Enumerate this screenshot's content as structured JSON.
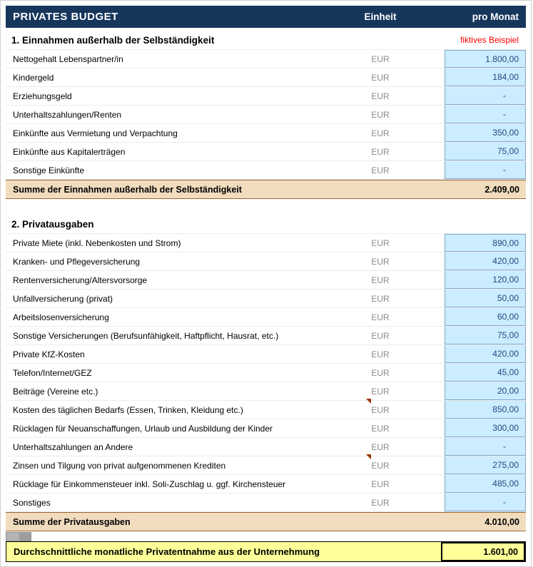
{
  "header": {
    "title": "PRIVATES BUDGET",
    "col_unit": "Einheit",
    "col_value": "pro Monat"
  },
  "note": "fiktives Beispiel",
  "unit": "EUR",
  "sections": [
    {
      "title": "1. Einnahmen außerhalb der Selbständigkeit",
      "rows": [
        {
          "label": "Nettogehalt Lebenspartner/in",
          "value": "1.800,00"
        },
        {
          "label": "Kindergeld",
          "value": "184,00"
        },
        {
          "label": "Erziehungsgeld",
          "value": "-"
        },
        {
          "label": "Unterhaltszahlungen/Renten",
          "value": "-"
        },
        {
          "label": "Einkünfte aus Vermietung und Verpachtung",
          "value": "350,00"
        },
        {
          "label": "Einkünfte aus Kapitalerträgen",
          "value": "75,00"
        },
        {
          "label": "Sonstige Einkünfte",
          "value": "-"
        }
      ],
      "summary": {
        "label": "Summe der Einnahmen außerhalb der Selbständigkeit",
        "value": "2.409,00"
      }
    },
    {
      "title": "2. Privatausgaben",
      "rows": [
        {
          "label": "Private Miete (inkl. Nebenkosten und Strom)",
          "value": "890,00"
        },
        {
          "label": "Kranken- und Pflegeversicherung",
          "value": "420,00"
        },
        {
          "label": "Rentenversicherung/Altersvorsorge",
          "value": "120,00"
        },
        {
          "label": "Unfallversicherung (privat)",
          "value": "50,00"
        },
        {
          "label": "Arbeitslosenversicherung",
          "value": "60,00"
        },
        {
          "label": "Sonstige Versicherungen (Berufsunfähigkeit, Haftpflicht, Hausrat, etc.)",
          "value": "75,00"
        },
        {
          "label": "Private KfZ-Kosten",
          "value": "420,00"
        },
        {
          "label": "Telefon/Internet/GEZ",
          "value": "45,00"
        },
        {
          "label": "Beiträge (Vereine etc.)",
          "value": "20,00"
        },
        {
          "label": "Kosten des täglichen Bedarfs (Essen, Trinken, Kleidung etc.)",
          "value": "850,00"
        },
        {
          "label": "Rücklagen für Neuanschaffungen, Urlaub und Ausbildung der Kinder",
          "value": "300,00"
        },
        {
          "label": "Unterhaltszahlungen an Andere",
          "value": "-"
        },
        {
          "label": "Zinsen und Tilgung von privat aufgenommenen Krediten",
          "value": "275,00"
        },
        {
          "label": "Rücklage für Einkommensteuer inkl. Soli-Zuschlag u. ggf. Kirchensteuer",
          "value": "485,00"
        },
        {
          "label": "Sonstiges",
          "value": "-"
        }
      ],
      "summary": {
        "label": "Summe der Privatausgaben",
        "value": "4.010,00"
      }
    }
  ],
  "total": {
    "label": "Durchschnittliche monatliche Privatentnahme aus der Unternehmung",
    "value": "1.601,00"
  },
  "colors": {
    "header_bg": "#16365C",
    "input_cell_bg": "#CCECFF",
    "input_cell_border": "#7FA8C9",
    "value_text": "#1F497D",
    "summary_bg": "#F1DCBE",
    "summary_border": "#996633",
    "total_bg": "#FFFF99",
    "note_red": "#FF0000",
    "unit_gray": "#8A8A8A",
    "comment_marker": "#993300"
  }
}
